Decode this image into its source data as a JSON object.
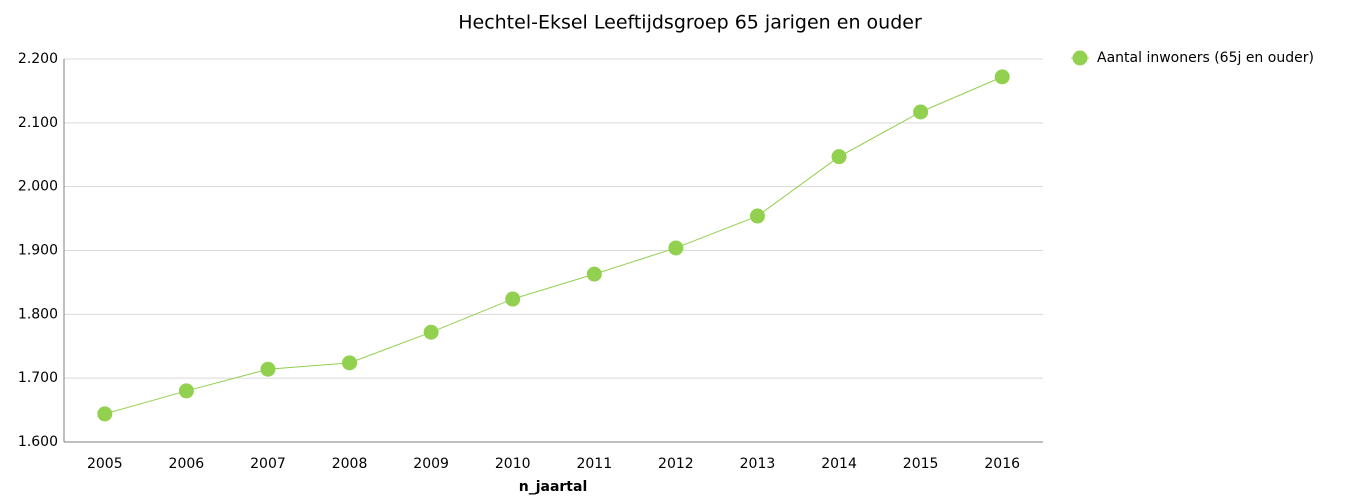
{
  "chart_data": {
    "type": "line",
    "title": "Hechtel-Eksel  Leeftijdsgroep 65 jarigen en ouder",
    "x_label": "n_jaartal",
    "categories": [
      "2005",
      "2006",
      "2007",
      "2008",
      "2009",
      "2010",
      "2011",
      "2012",
      "2013",
      "2014",
      "2015",
      "2016"
    ],
    "series": [
      {
        "name": "Aantal inwoners (65j en ouder)",
        "color": "#92d050",
        "values": [
          1644,
          1680,
          1714,
          1724,
          1772,
          1824,
          1863,
          1904,
          1954,
          2047,
          2117,
          2172
        ]
      }
    ],
    "ylim": [
      1600,
      2200
    ],
    "yticks": [
      {
        "value": 1600,
        "label": "1.600"
      },
      {
        "value": 1700,
        "label": "1.700"
      },
      {
        "value": 1800,
        "label": "1.800"
      },
      {
        "value": 1900,
        "label": "1.900"
      },
      {
        "value": 2000,
        "label": "2.000"
      },
      {
        "value": 2100,
        "label": "2.100"
      },
      {
        "value": 2200,
        "label": "2.200"
      }
    ],
    "grid": true,
    "legend": "right"
  }
}
